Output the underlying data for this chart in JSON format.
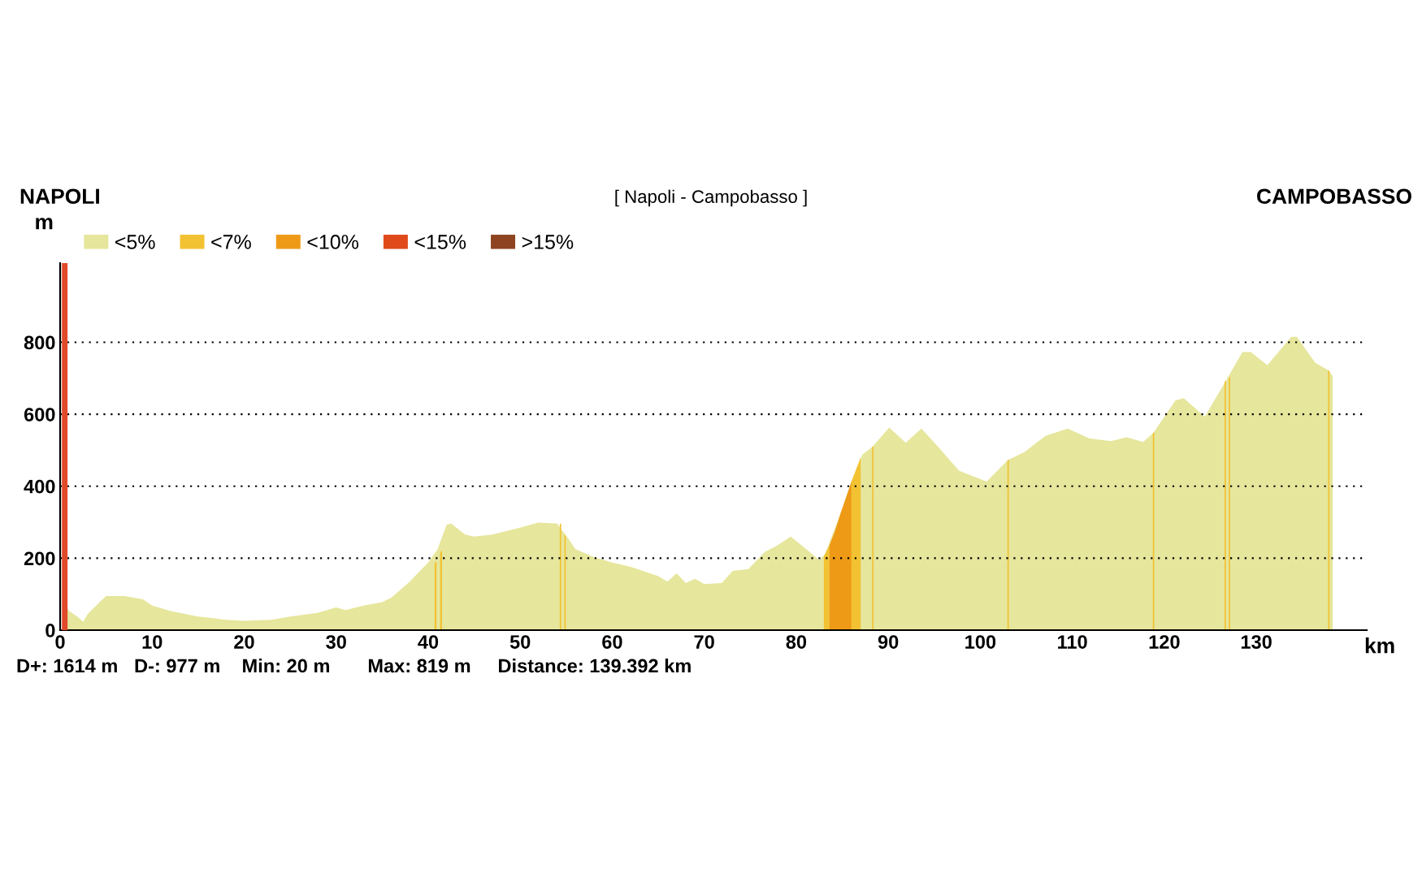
{
  "chart_data": {
    "type": "area",
    "title": "[ Napoli - Campobasso ]",
    "annotations": [
      "NAPOLI",
      "CAMPOBASSO",
      "D+: 1614 m   D-: 977 m    Min: 20 m       Max: 819 m     Distance: 139.392 km"
    ],
    "xlabel": "km",
    "ylabel": "m",
    "xlim": [
      0,
      142
    ],
    "ylim": [
      0,
      1020
    ],
    "xticks": [
      0,
      10,
      20,
      30,
      40,
      50,
      60,
      70,
      80,
      90,
      100,
      110,
      120,
      130
    ],
    "yticks": [
      0,
      200,
      400,
      600,
      800
    ],
    "grid": "y",
    "legend": "top left",
    "ref_lines": [
      {
        "axis": "x",
        "value": 0.5,
        "color": "#e04a2a"
      }
    ],
    "series": [
      {
        "name": "<5%",
        "color": "#e6e69c",
        "x": [
          0.3,
          0.6,
          1,
          2,
          2.5,
          3,
          4.5,
          5,
          7,
          9,
          10,
          12,
          15,
          18,
          20,
          23,
          25,
          28,
          30,
          31,
          33,
          35,
          36,
          38,
          40,
          41,
          42,
          42.5,
          44,
          45,
          47,
          50,
          52,
          54,
          55,
          56,
          58,
          60,
          62,
          65,
          66,
          67,
          68,
          69,
          70,
          71.9,
          73.1,
          74.8,
          76.6,
          77.8,
          79.4,
          80.7,
          82.5,
          83.1,
          84.8,
          86.0,
          87.2,
          88.3,
          90.1,
          91.9,
          93.6,
          95.4,
          97.7,
          100.7,
          103.0,
          104.8,
          107.1,
          109.5,
          111.8,
          114.2,
          115.9,
          117.7,
          118.8,
          121.2,
          122.1,
          124.4,
          126.8,
          128.5,
          129.4,
          131.2,
          133.8,
          134.4,
          136.4,
          137.9,
          138.3
        ],
        "values": [
          70,
          68,
          53,
          35,
          23,
          45,
          83,
          95,
          95,
          86,
          68,
          53,
          38,
          29,
          26,
          29,
          38,
          48,
          63,
          56,
          68,
          78,
          90,
          135,
          188,
          224,
          293,
          296,
          266,
          260,
          266,
          285,
          299,
          296,
          263,
          225,
          203,
          188,
          176,
          150,
          135,
          158,
          131,
          143,
          128,
          131,
          165,
          170,
          218,
          233,
          260,
          233,
          195,
          210,
          323,
          413,
          488,
          510,
          563,
          521,
          560,
          510,
          443,
          413,
          473,
          495,
          540,
          560,
          533,
          525,
          536,
          523,
          548,
          638,
          645,
          593,
          698,
          773,
          773,
          736,
          815,
          815,
          743,
          721,
          706
        ]
      },
      {
        "name": "<7%",
        "color": "#f2c232",
        "x": [
          40.7,
          40.9,
          40.95,
          41.3,
          41.5,
          41.55,
          54.3,
          54.45,
          54.5,
          54.8,
          54.95,
          55.0,
          83.0,
          83.6,
          83.65,
          86.0,
          87.0,
          87.05,
          88.25,
          88.4,
          88.45,
          102.95,
          103.1,
          103.15,
          118.75,
          118.9,
          118.95,
          126.55,
          126.7,
          126.75,
          127.0,
          127.15,
          127.2,
          137.8,
          137.95
        ],
        "values": [
          186,
          190,
          null,
          215,
          222,
          null,
          296,
          296,
          null,
          265,
          262,
          null,
          205,
          235,
          null,
          413,
          480,
          null,
          508,
          512,
          null,
          472,
          474,
          null,
          547,
          550,
          null,
          690,
          694,
          null,
          700,
          705,
          null,
          722,
          720
        ]
      },
      {
        "name": "<10%",
        "color": "#ef9a16",
        "x": [
          83.6,
          84.2,
          84.8,
          85.4,
          86.0
        ],
        "values": [
          235,
          275,
          323,
          368,
          413
        ]
      },
      {
        "name": "<15%",
        "color": "#e04a1a"
      },
      {
        "name": ">15%",
        "color": "#8e4420"
      }
    ]
  }
}
